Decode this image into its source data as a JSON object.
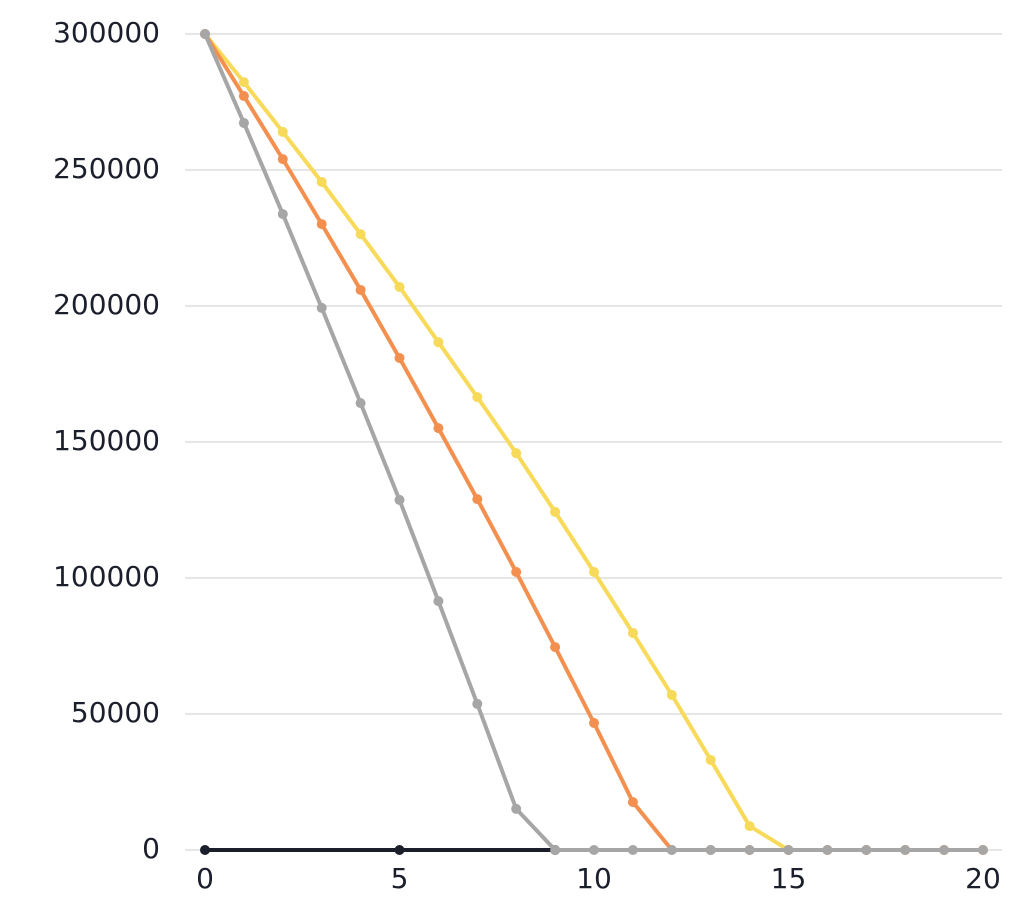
{
  "chart_data": {
    "type": "line",
    "x": [
      0,
      1,
      2,
      3,
      4,
      5,
      6,
      7,
      8,
      9,
      10,
      11,
      12,
      13,
      14,
      15,
      16,
      17,
      18,
      19,
      20
    ],
    "xlim": [
      0,
      20
    ],
    "xticks": [
      0,
      5,
      10,
      15,
      20
    ],
    "ylim": [
      0,
      300000
    ],
    "yticks": [
      0,
      50000,
      100000,
      150000,
      200000,
      250000,
      300000
    ],
    "grid": true,
    "series": [
      {
        "color": "#1a1f2b",
        "x": [
          0,
          5,
          9
        ],
        "values": [
          0,
          0,
          0
        ]
      },
      {
        "color": "#f7da5a",
        "values": [
          300000,
          282300,
          264000,
          245600,
          226400,
          207000,
          186700,
          166500,
          145900,
          124300,
          102200,
          79800,
          57000,
          33100,
          8800,
          0,
          0,
          0,
          0,
          0,
          0
        ]
      },
      {
        "color": "#f4904f",
        "values": [
          300000,
          277200,
          254000,
          230100,
          205900,
          180900,
          155100,
          129000,
          102200,
          74600,
          46700,
          17600,
          0,
          0,
          0,
          0,
          0,
          0,
          0,
          0,
          0
        ]
      },
      {
        "color": "#a6a6a6",
        "values": [
          300000,
          267300,
          233800,
          199300,
          164300,
          128700,
          91500,
          53700,
          15100,
          0,
          0,
          0,
          0,
          0,
          0,
          0,
          0,
          0,
          0,
          0,
          0
        ]
      }
    ]
  }
}
